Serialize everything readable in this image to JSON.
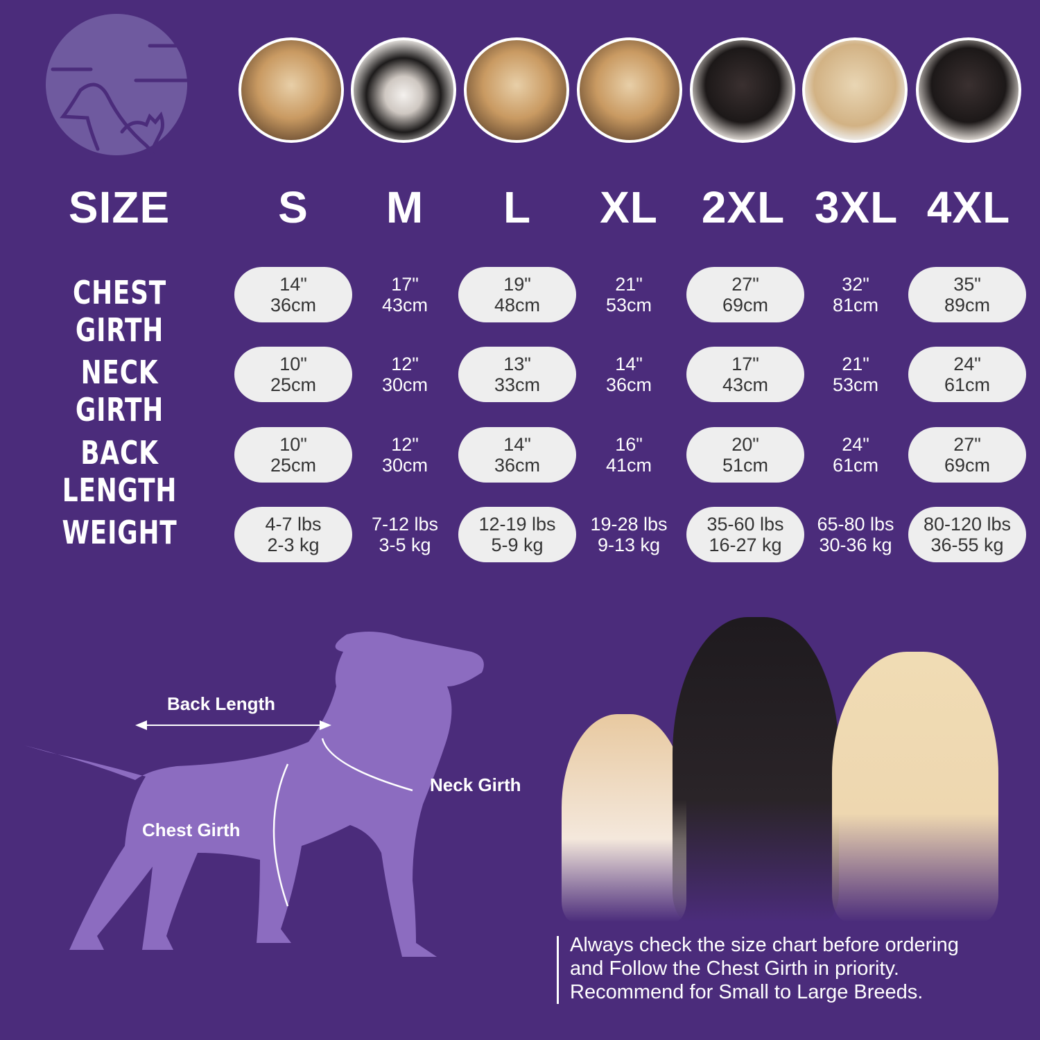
{
  "colors": {
    "background": "#4b2c7b",
    "pill": "#eeeeee",
    "silhouette": "#8c6cc0",
    "logo": "#6f5a9f"
  },
  "logo": {
    "icon": "dog-cat-logo-icon"
  },
  "header": {
    "label": "SIZE",
    "sizes": [
      "S",
      "M",
      "L",
      "XL",
      "2XL",
      "3XL",
      "4XL"
    ]
  },
  "rows": [
    {
      "label": "CHEST GIRTH",
      "values": [
        [
          "14\"",
          "36cm"
        ],
        [
          "17\"",
          "43cm"
        ],
        [
          "19\"",
          "48cm"
        ],
        [
          "21\"",
          "53cm"
        ],
        [
          "27\"",
          "69cm"
        ],
        [
          "32\"",
          "81cm"
        ],
        [
          "35\"",
          "89cm"
        ]
      ]
    },
    {
      "label": "NECK GIRTH",
      "values": [
        [
          "10\"",
          "25cm"
        ],
        [
          "12\"",
          "30cm"
        ],
        [
          "13\"",
          "33cm"
        ],
        [
          "14\"",
          "36cm"
        ],
        [
          "17\"",
          "43cm"
        ],
        [
          "21\"",
          "53cm"
        ],
        [
          "24\"",
          "61cm"
        ]
      ]
    },
    {
      "label": "BACK LENGTH",
      "values": [
        [
          "10\"",
          "25cm"
        ],
        [
          "12\"",
          "30cm"
        ],
        [
          "14\"",
          "36cm"
        ],
        [
          "16\"",
          "41cm"
        ],
        [
          "20\"",
          "51cm"
        ],
        [
          "24\"",
          "61cm"
        ],
        [
          "27\"",
          "69cm"
        ]
      ]
    },
    {
      "label": "WEIGHT",
      "values": [
        [
          "4-7 lbs",
          "2-3 kg"
        ],
        [
          "7-12 lbs",
          "3-5 kg"
        ],
        [
          "12-19 lbs",
          "5-9 kg"
        ],
        [
          "19-28 lbs",
          "9-13 kg"
        ],
        [
          "35-60 lbs",
          "16-27 kg"
        ],
        [
          "65-80 lbs",
          "30-36 kg"
        ],
        [
          "80-120 lbs",
          "36-55 kg"
        ]
      ]
    }
  ],
  "diagram": {
    "back_length": "Back Length",
    "neck_girth": "Neck Girth",
    "chest_girth": "Chest Girth"
  },
  "note": [
    "Always check the size chart before ordering",
    "and Follow the Chest Girth in priority.",
    "Recommend for Small to Large Breeds."
  ]
}
